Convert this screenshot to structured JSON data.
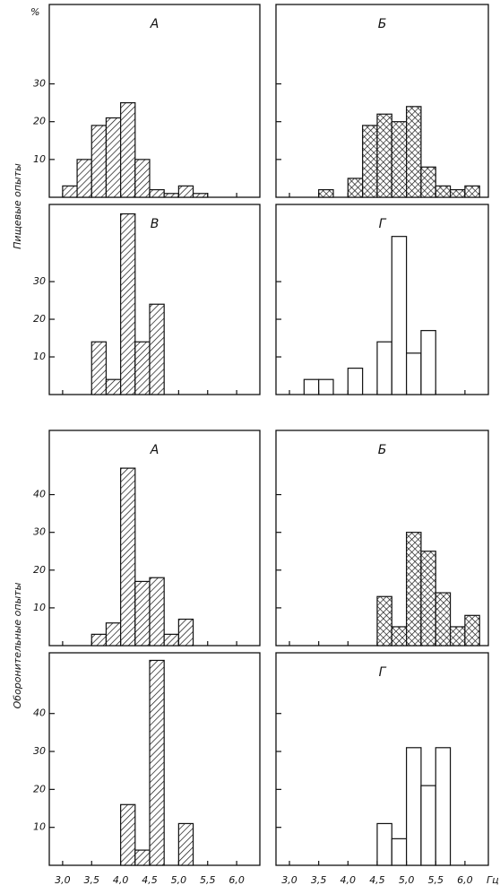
{
  "y_unit": "%",
  "x_unit": "Гц",
  "group_labels": [
    "Пищевые опыты",
    "Оборонительные опыты"
  ],
  "chart_data": [
    {
      "type": "histogram",
      "title": "А",
      "bins": [
        3.0,
        3.25,
        3.5,
        3.75,
        4.0,
        4.25,
        4.5,
        4.75,
        5.0,
        5.25,
        5.5
      ],
      "values": [
        3,
        10,
        19,
        21,
        25,
        10,
        2,
        1,
        3,
        1
      ],
      "xlim": [
        2.77,
        6.4
      ],
      "ylim": [
        0,
        51
      ],
      "xticks": [
        3,
        3.5,
        4,
        4.5,
        5,
        5.5,
        6
      ],
      "yticks": [
        10,
        20,
        30
      ],
      "ytick_labels": true,
      "pattern": "hatch",
      "color": "#111111"
    },
    {
      "type": "histogram",
      "title": "Б",
      "bins": [
        3.5,
        3.75,
        4.0,
        4.25,
        4.5,
        4.75,
        5.0,
        5.25,
        5.5,
        5.75,
        6.0,
        6.25
      ],
      "values": [
        2,
        0,
        5,
        19,
        22,
        20,
        24,
        8,
        3,
        2,
        3
      ],
      "xlim": [
        2.77,
        6.4
      ],
      "ylim": [
        0,
        51
      ],
      "xticks": [
        3,
        3.5,
        4,
        4.5,
        5,
        5.5,
        6
      ],
      "yticks": [
        10,
        20,
        30
      ],
      "ytick_labels": false,
      "pattern": "crosshatch",
      "color": "#111111"
    },
    {
      "type": "histogram",
      "title": "В",
      "bins": [
        3.5,
        3.75,
        4.0,
        4.25,
        4.5,
        4.75
      ],
      "values": [
        14,
        4,
        48,
        14,
        24
      ],
      "xlim": [
        2.77,
        6.4
      ],
      "ylim": [
        0,
        50.5
      ],
      "xticks": [
        3,
        3.5,
        4,
        4.5,
        5,
        5.5,
        6
      ],
      "yticks": [
        10,
        20,
        30
      ],
      "ytick_labels": true,
      "pattern": "hatch",
      "color": "#111111"
    },
    {
      "type": "histogram",
      "title": "Г",
      "bins": [
        3.25,
        3.5,
        3.75,
        4.0,
        4.25,
        4.5,
        4.75,
        5.0,
        5.25,
        5.5
      ],
      "values": [
        4,
        4,
        0,
        7,
        0,
        14,
        42,
        11,
        17
      ],
      "xlim": [
        2.77,
        6.4
      ],
      "ylim": [
        0,
        50.5
      ],
      "xticks": [
        3,
        3.5,
        4,
        4.5,
        5,
        5.5,
        6
      ],
      "yticks": [
        10,
        20,
        30
      ],
      "ytick_labels": false,
      "pattern": "none",
      "color": "#111111"
    },
    {
      "type": "histogram",
      "title": "А",
      "bins": [
        3.5,
        3.75,
        4.0,
        4.25,
        4.5,
        4.75,
        5.0,
        5.25
      ],
      "values": [
        3,
        6,
        47,
        17,
        18,
        3,
        7
      ],
      "xlim": [
        2.77,
        6.4
      ],
      "ylim": [
        0,
        57
      ],
      "xticks": [
        3,
        3.5,
        4,
        4.5,
        5,
        5.5,
        6
      ],
      "yticks": [
        10,
        20,
        30,
        40
      ],
      "ytick_labels": true,
      "pattern": "hatch",
      "color": "#111111"
    },
    {
      "type": "histogram",
      "title": "Б",
      "bins": [
        4.5,
        4.75,
        5.0,
        5.25,
        5.5,
        5.75,
        6.0,
        6.25
      ],
      "values": [
        13,
        5,
        30,
        25,
        14,
        5,
        8
      ],
      "xlim": [
        2.77,
        6.4
      ],
      "ylim": [
        0,
        57
      ],
      "xticks": [
        3,
        3.5,
        4,
        4.5,
        5,
        5.5,
        6
      ],
      "yticks": [
        10,
        20,
        30,
        40
      ],
      "ytick_labels": false,
      "pattern": "crosshatch",
      "color": "#111111"
    },
    {
      "type": "histogram",
      "title": "В",
      "bins": [
        4.0,
        4.25,
        4.5,
        4.75,
        5.0,
        5.25
      ],
      "values": [
        16,
        4,
        54,
        0,
        11
      ],
      "xlim": [
        2.77,
        6.4
      ],
      "ylim": [
        0,
        56
      ],
      "xticks": [
        {
          "value": 3,
          "label": "3,0"
        },
        {
          "value": 3.5,
          "label": "3,5"
        },
        {
          "value": 4,
          "label": "4,0"
        },
        {
          "value": 4.5,
          "label": "4,5"
        },
        {
          "value": 5,
          "label": "5,0"
        },
        {
          "value": 5.5,
          "label": "5,5"
        },
        {
          "value": 6,
          "label": "6,0"
        }
      ],
      "yticks": [
        10,
        20,
        30,
        40
      ],
      "ytick_labels": true,
      "pattern": "hatch",
      "color": "#111111"
    },
    {
      "type": "histogram",
      "title": "Г",
      "bins": [
        4.5,
        4.75,
        5.0,
        5.25,
        5.5,
        5.75
      ],
      "values": [
        11,
        7,
        31,
        21,
        31
      ],
      "xlim": [
        2.77,
        6.4
      ],
      "ylim": [
        0,
        56
      ],
      "xticks": [
        {
          "value": 3,
          "label": "3,0"
        },
        {
          "value": 3.5,
          "label": "3,5"
        },
        {
          "value": 4,
          "label": "4,0"
        },
        {
          "value": 4.5,
          "label": "4,5"
        },
        {
          "value": 5,
          "label": "5,0"
        },
        {
          "value": 5.5,
          "label": "5,5"
        },
        {
          "value": 6,
          "label": "6,0"
        }
      ],
      "yticks": [
        10,
        20,
        30,
        40
      ],
      "ytick_labels": false,
      "pattern": "none",
      "color": "#111111"
    }
  ]
}
